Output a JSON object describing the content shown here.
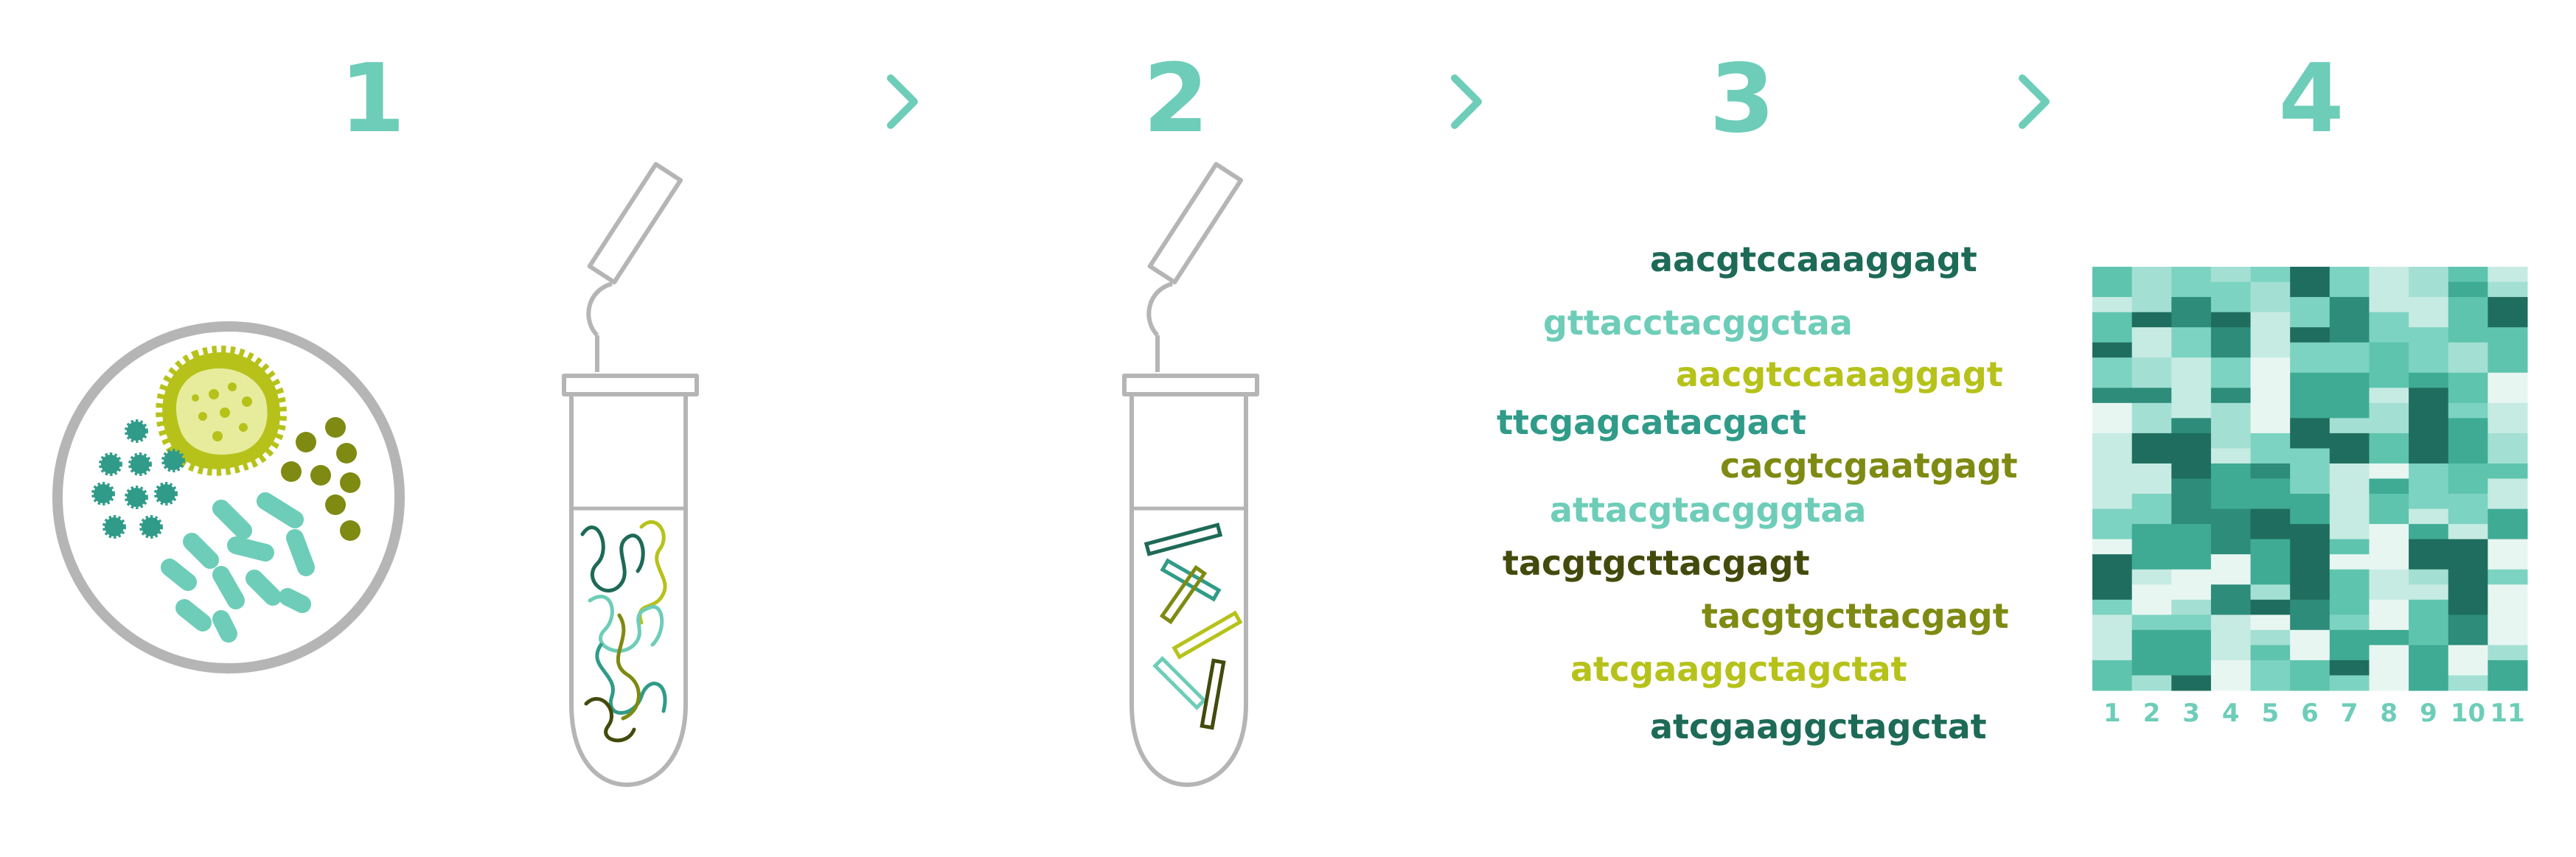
{
  "steps": [
    "1",
    "2",
    "3",
    "4"
  ],
  "colors": {
    "teal_light": "#6dcdb8",
    "teal_mid": "#2f9b88",
    "teal_dark": "#1d6a57",
    "lime": "#b6c21a",
    "olive": "#7e8a12",
    "olive_dark": "#434a0c",
    "gray": "#b5b5b5"
  },
  "icons": {
    "arrow": "chevron-right-icon",
    "dish": "petri-dish-icon",
    "tube": "microcentrifuge-tube-icon"
  },
  "sequences": [
    {
      "text": "aacgtccaaaggagt",
      "color": "#1d6a57"
    },
    {
      "text": "gttacctacggctaa",
      "color": "#6dcdb8"
    },
    {
      "text": "aacgtccaaaggagt",
      "color": "#b6c21a"
    },
    {
      "text": "ttcgagcatacgact",
      "color": "#2f9b88"
    },
    {
      "text": "cacgtcgaatgagt",
      "color": "#7e8a12"
    },
    {
      "text": "attacgtacgggtaa",
      "color": "#6dcdb8"
    },
    {
      "text": "tacgtgcttacgagt",
      "color": "#434a0c"
    },
    {
      "text": "tacgtgcttacgagt",
      "color": "#7e8a12"
    },
    {
      "text": "atcgaaggctagctat",
      "color": "#b6c21a"
    },
    {
      "text": "atcgaaggctagctat",
      "color": "#1d6a57"
    }
  ],
  "heatmap": {
    "columns": [
      "1",
      "2",
      "3",
      "4",
      "5",
      "6",
      "7",
      "8",
      "9",
      "10",
      "11"
    ],
    "rows": 28
  }
}
